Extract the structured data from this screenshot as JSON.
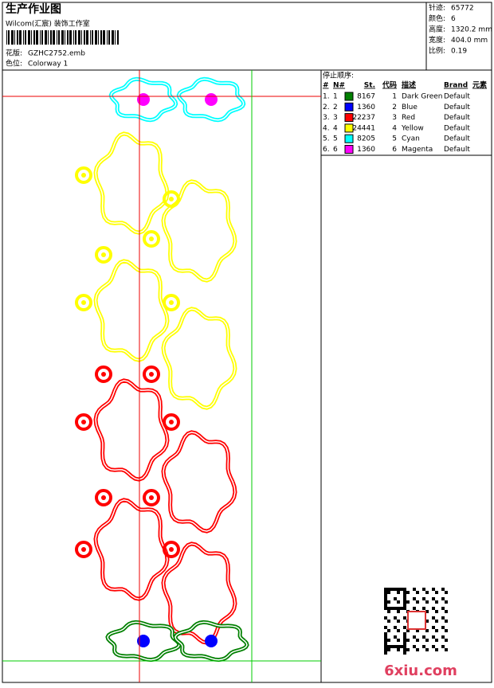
{
  "header": {
    "title": "生产作业图",
    "company": "Wilcom(汇宸) 装饰工作室",
    "design": {
      "label": "花版:",
      "value": "GZHC2752.emb"
    },
    "colorway": {
      "label": "色位:",
      "value": "Colorway 1"
    }
  },
  "info": [
    {
      "label": "针迹:",
      "value": "65772"
    },
    {
      "label": "颜色:",
      "value": "6"
    },
    {
      "label": "高度:",
      "value": "1320.2 mm"
    },
    {
      "label": "宽度:",
      "value": "404.0 mm"
    },
    {
      "label": "比例:",
      "value": "0.19"
    }
  ],
  "stop_sequence": {
    "title": "停止顺序:",
    "columns": [
      "#",
      "N#",
      "St.",
      "代码",
      "描述",
      "Brand",
      "元素"
    ],
    "rows": [
      {
        "index": "1.",
        "needle": "1",
        "color": "#008000",
        "stitches": "8167",
        "code": "1",
        "description": "Dark Green",
        "brand": "Default"
      },
      {
        "index": "2.",
        "needle": "2",
        "color": "#0000ff",
        "stitches": "1360",
        "code": "2",
        "description": "Blue",
        "brand": "Default"
      },
      {
        "index": "3.",
        "needle": "3",
        "color": "#ff0000",
        "stitches": "22237",
        "code": "3",
        "description": "Red",
        "brand": "Default"
      },
      {
        "index": "4.",
        "needle": "4",
        "color": "#ffff00",
        "stitches": "24441",
        "code": "4",
        "description": "Yellow",
        "brand": "Default"
      },
      {
        "index": "5.",
        "needle": "5",
        "color": "#00ffff",
        "stitches": "8205",
        "code": "5",
        "description": "Cyan",
        "brand": "Default"
      },
      {
        "index": "6.",
        "needle": "6",
        "color": "#ff00ff",
        "stitches": "1360",
        "code": "6",
        "description": "Magenta",
        "brand": "Default"
      }
    ]
  },
  "watermark": "6xiu.com"
}
